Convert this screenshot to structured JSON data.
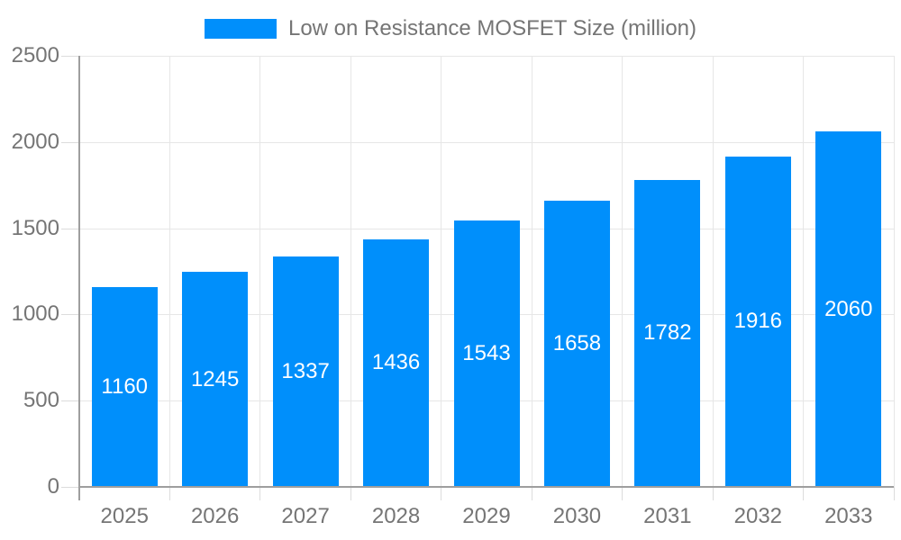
{
  "legend": {
    "label": "Low on Resistance MOSFET Size (million)"
  },
  "chart_data": {
    "type": "bar",
    "title": "Low on Resistance MOSFET Size (million)",
    "categories": [
      "2025",
      "2026",
      "2027",
      "2028",
      "2029",
      "2030",
      "2031",
      "2032",
      "2033"
    ],
    "values": [
      1160,
      1245,
      1337,
      1436,
      1543,
      1658,
      1782,
      1916,
      2060
    ],
    "series": [
      {
        "name": "Low on Resistance MOSFET Size (million)",
        "values": [
          1160,
          1245,
          1337,
          1436,
          1543,
          1658,
          1782,
          1916,
          2060
        ]
      }
    ],
    "xlabel": "",
    "ylabel": "",
    "ylim": [
      0,
      2500
    ],
    "yticks": [
      0,
      500,
      1000,
      1500,
      2000,
      2500
    ],
    "grid": true,
    "legend_position": "top",
    "value_labels": "centered-inside-bars",
    "colors": {
      "bar": "#008FFB",
      "value_label": "#ffffff",
      "axis_text": "#757575",
      "grid": "#e6e6e6",
      "tick": "#dcdcdc",
      "axis_line": "#9e9e9e",
      "background": "#ffffff"
    }
  }
}
